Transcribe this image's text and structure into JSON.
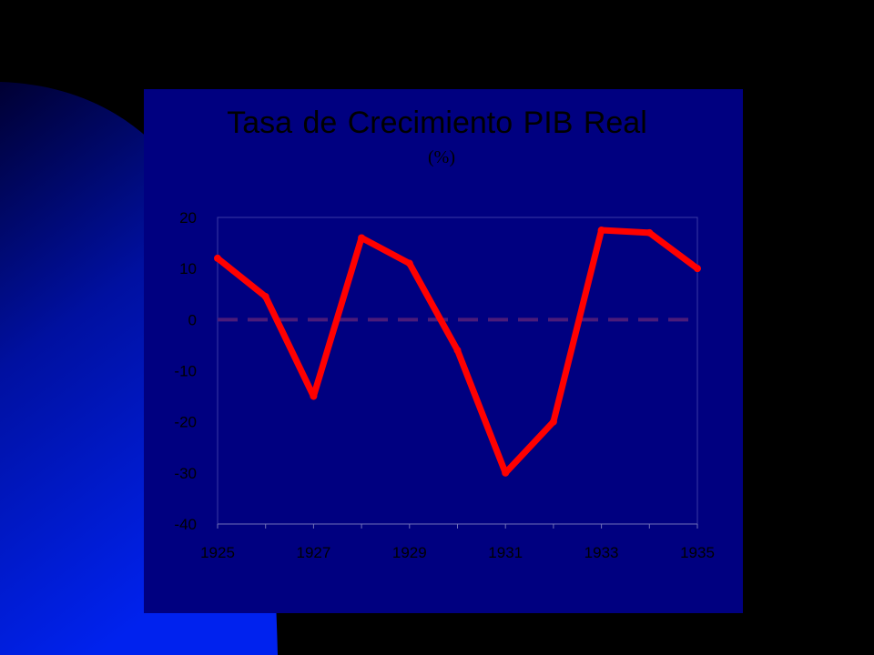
{
  "slide": {
    "background_color": "#000000",
    "panel_color": "#000080",
    "accent_gradient_colors": [
      "#000033",
      "#0010a0",
      "#0022ee"
    ]
  },
  "chart_data": {
    "type": "line",
    "title": "Tasa de Crecimiento PIB Real",
    "subtitle": "(%)",
    "xlabel": "",
    "ylabel": "",
    "x": [
      1925,
      1926,
      1927,
      1928,
      1929,
      1930,
      1931,
      1932,
      1933,
      1934,
      1935
    ],
    "x_tick_labels": [
      "1925",
      "1927",
      "1929",
      "1931",
      "1933",
      "1935"
    ],
    "y_tick_labels": [
      "20",
      "10",
      "0",
      "-10",
      "-20",
      "-30",
      "-40"
    ],
    "ylim": [
      -40,
      20
    ],
    "grid": false,
    "legend": "none",
    "series": [
      {
        "color": "#ff0000",
        "values": [
          12,
          4.5,
          -15,
          16,
          11,
          -6,
          -30,
          -20,
          17.5,
          17,
          10
        ]
      }
    ],
    "reference_line": {
      "y": 0,
      "style": "dashed",
      "color": "#4b1b7a"
    }
  }
}
